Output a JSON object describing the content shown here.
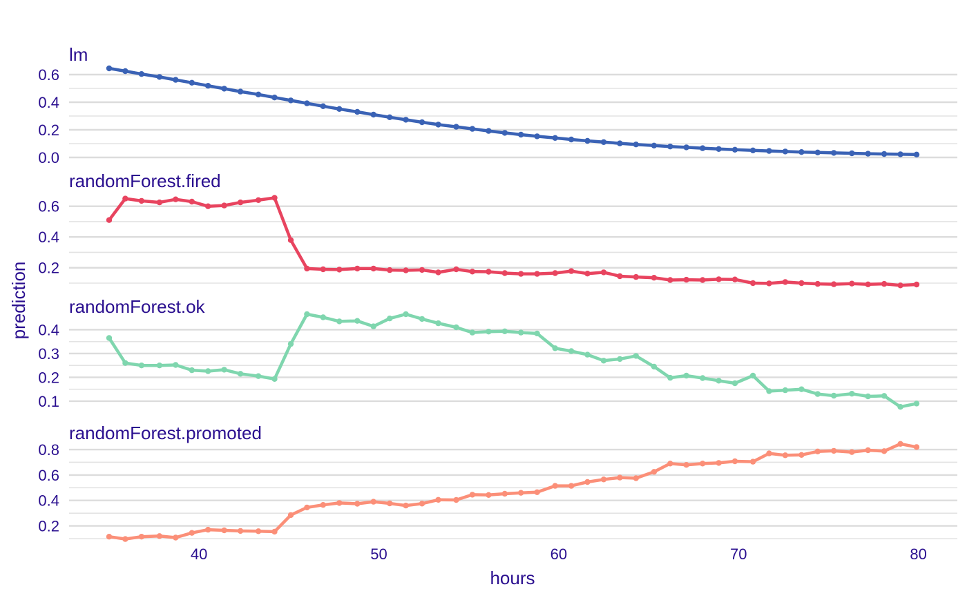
{
  "chart_data": {
    "type": "line",
    "xlabel": "hours",
    "ylabel": "prediction",
    "xlim": [
      32.6,
      81.8
    ],
    "x_ticks": [
      40,
      50,
      60,
      70,
      80
    ],
    "x": [
      35.0,
      35.9,
      36.8,
      37.8,
      38.7,
      39.6,
      40.5,
      41.4,
      42.3,
      43.3,
      44.2,
      45.1,
      46.0,
      46.9,
      47.8,
      48.8,
      49.7,
      50.6,
      51.5,
      52.4,
      53.3,
      54.3,
      55.2,
      56.1,
      57.0,
      57.9,
      58.8,
      59.8,
      60.7,
      61.6,
      62.5,
      63.4,
      64.3,
      65.3,
      66.2,
      67.1,
      68.0,
      68.9,
      69.8,
      70.8,
      71.7,
      72.6,
      73.5,
      74.4,
      75.3,
      76.3,
      77.2,
      78.1,
      79.0,
      79.9
    ],
    "panels": [
      {
        "title": "lm",
        "color": "#3a62b5",
        "ylim": [
          -0.06,
          0.7
        ],
        "y_ticks": [
          0.6,
          0.4,
          0.2,
          0.0
        ],
        "y_tick_labels": [
          "0.6",
          "0.4",
          "0.2",
          "0.0"
        ],
        "y_minor": [
          0.5,
          0.3,
          0.1
        ],
        "values": [
          0.645,
          0.625,
          0.604,
          0.583,
          0.562,
          0.541,
          0.519,
          0.498,
          0.477,
          0.456,
          0.434,
          0.413,
          0.392,
          0.371,
          0.351,
          0.33,
          0.31,
          0.291,
          0.273,
          0.255,
          0.238,
          0.222,
          0.207,
          0.192,
          0.178,
          0.165,
          0.153,
          0.141,
          0.13,
          0.12,
          0.111,
          0.102,
          0.094,
          0.086,
          0.079,
          0.073,
          0.067,
          0.061,
          0.056,
          0.051,
          0.047,
          0.043,
          0.039,
          0.036,
          0.033,
          0.03,
          0.027,
          0.025,
          0.023,
          0.021
        ]
      },
      {
        "title": "randomForest.fired",
        "color": "#e8445f",
        "ylim": [
          0.1,
          0.72
        ],
        "y_ticks": [
          0.6,
          0.4,
          0.2
        ],
        "y_tick_labels": [
          "0.6",
          "0.4",
          "0.2"
        ],
        "y_minor": [
          0.5,
          0.3,
          0.1
        ],
        "values": [
          0.51,
          0.65,
          0.635,
          0.625,
          0.645,
          0.63,
          0.6,
          0.605,
          0.625,
          0.64,
          0.655,
          0.38,
          0.195,
          0.19,
          0.188,
          0.195,
          0.195,
          0.185,
          0.183,
          0.186,
          0.17,
          0.19,
          0.175,
          0.174,
          0.165,
          0.16,
          0.16,
          0.165,
          0.178,
          0.162,
          0.17,
          0.145,
          0.14,
          0.135,
          0.12,
          0.122,
          0.12,
          0.125,
          0.124,
          0.1,
          0.098,
          0.107,
          0.1,
          0.095,
          0.093,
          0.097,
          0.092,
          0.095,
          0.085,
          0.091
        ]
      },
      {
        "title": "randomForest.ok",
        "color": "#7fd6ae",
        "ylim": [
          0.065,
          0.465
        ],
        "y_ticks": [
          0.4,
          0.3,
          0.2,
          0.1
        ],
        "y_tick_labels": [
          "0.4",
          "0.3",
          "0.2",
          "0.1"
        ],
        "y_minor": [
          0.35,
          0.25,
          0.15
        ],
        "values": [
          0.365,
          0.26,
          0.25,
          0.25,
          0.252,
          0.23,
          0.226,
          0.232,
          0.215,
          0.205,
          0.193,
          0.34,
          0.465,
          0.452,
          0.435,
          0.437,
          0.414,
          0.447,
          0.465,
          0.445,
          0.427,
          0.41,
          0.388,
          0.392,
          0.393,
          0.388,
          0.384,
          0.322,
          0.31,
          0.295,
          0.27,
          0.277,
          0.29,
          0.245,
          0.198,
          0.207,
          0.197,
          0.186,
          0.175,
          0.207,
          0.142,
          0.146,
          0.15,
          0.13,
          0.123,
          0.131,
          0.12,
          0.122,
          0.076,
          0.09
        ]
      },
      {
        "title": "randomForest.promoted",
        "color": "#fb8f78",
        "ylim": [
          0.1,
          0.86
        ],
        "y_ticks": [
          0.8,
          0.6,
          0.4,
          0.2
        ],
        "y_tick_labels": [
          "0.8",
          "0.6",
          "0.4",
          "0.2"
        ],
        "y_minor": [
          0.7,
          0.5,
          0.3,
          0.1
        ],
        "values": [
          0.115,
          0.097,
          0.115,
          0.12,
          0.108,
          0.145,
          0.17,
          0.165,
          0.16,
          0.158,
          0.155,
          0.285,
          0.345,
          0.365,
          0.38,
          0.374,
          0.39,
          0.377,
          0.36,
          0.375,
          0.405,
          0.404,
          0.445,
          0.443,
          0.453,
          0.46,
          0.465,
          0.515,
          0.515,
          0.545,
          0.565,
          0.58,
          0.575,
          0.625,
          0.69,
          0.68,
          0.69,
          0.695,
          0.708,
          0.705,
          0.77,
          0.755,
          0.758,
          0.785,
          0.79,
          0.78,
          0.795,
          0.788,
          0.845,
          0.82
        ]
      }
    ]
  }
}
